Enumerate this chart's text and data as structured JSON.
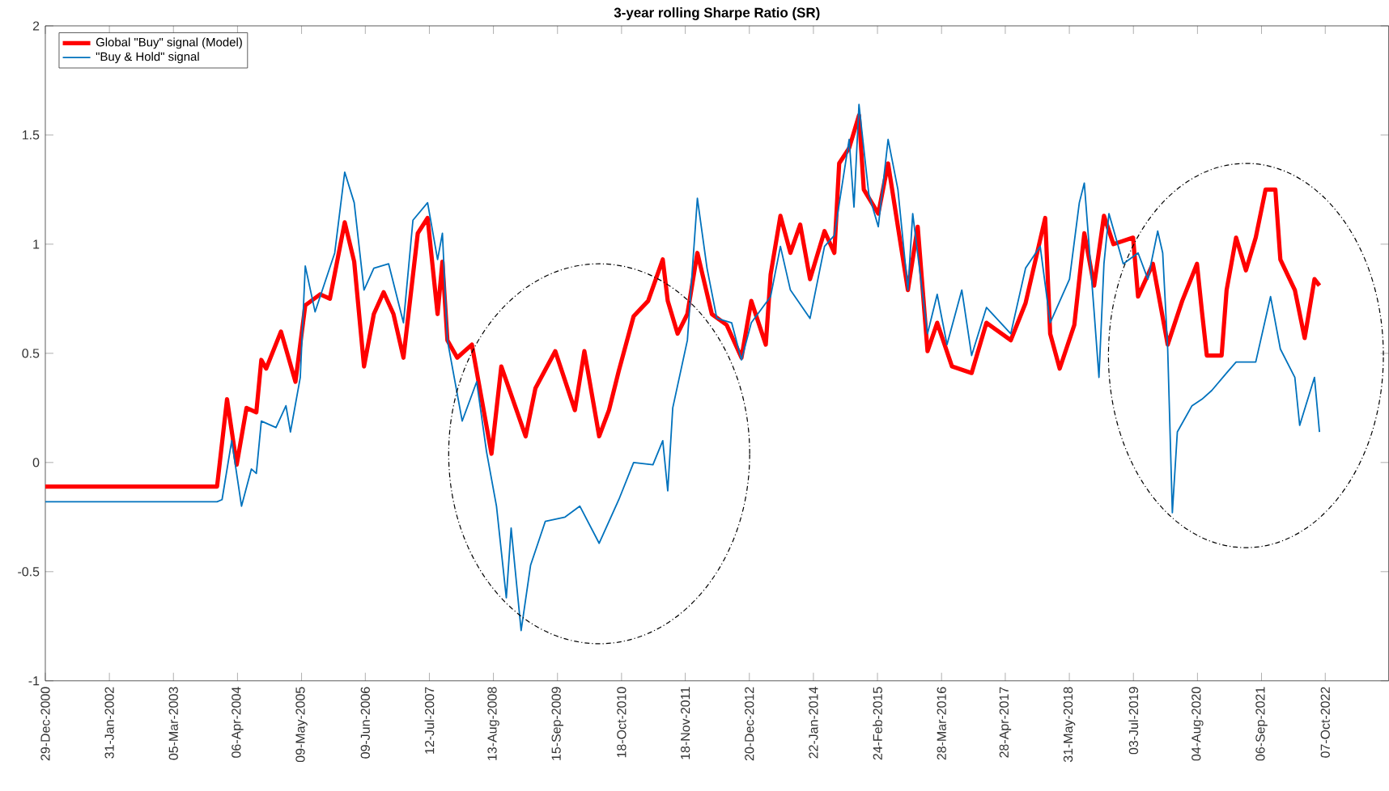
{
  "chart_data": {
    "type": "line",
    "title": "3-year rolling Sharpe Ratio (SR)",
    "xlim": [
      "2000-12-29",
      "2023-11-05"
    ],
    "xticks": [
      {
        "value": "2000-12-29",
        "label": "29-Dec-2000"
      },
      {
        "value": "2002-01-31",
        "label": "31-Jan-2002"
      },
      {
        "value": "2003-03-05",
        "label": "05-Mar-2003"
      },
      {
        "value": "2004-04-06",
        "label": "06-Apr-2004"
      },
      {
        "value": "2005-05-09",
        "label": "09-May-2005"
      },
      {
        "value": "2006-06-09",
        "label": "09-Jun-2006"
      },
      {
        "value": "2007-07-12",
        "label": "12-Jul-2007"
      },
      {
        "value": "2008-08-13",
        "label": "13-Aug-2008"
      },
      {
        "value": "2009-09-15",
        "label": "15-Sep-2009"
      },
      {
        "value": "2010-10-18",
        "label": "18-Oct-2010"
      },
      {
        "value": "2011-11-18",
        "label": "18-Nov-2011"
      },
      {
        "value": "2012-12-20",
        "label": "20-Dec-2012"
      },
      {
        "value": "2014-01-22",
        "label": "22-Jan-2014"
      },
      {
        "value": "2015-02-24",
        "label": "24-Feb-2015"
      },
      {
        "value": "2016-03-28",
        "label": "28-Mar-2016"
      },
      {
        "value": "2017-04-28",
        "label": "28-Apr-2017"
      },
      {
        "value": "2018-05-31",
        "label": "31-May-2018"
      },
      {
        "value": "2019-07-03",
        "label": "03-Jul-2019"
      },
      {
        "value": "2020-08-04",
        "label": "04-Aug-2020"
      },
      {
        "value": "2021-09-06",
        "label": "06-Sep-2021"
      },
      {
        "value": "2022-10-07",
        "label": "07-Oct-2022"
      }
    ],
    "ylim": [
      -1,
      2
    ],
    "yticks": [
      -1,
      -0.5,
      0,
      0.5,
      1,
      1.5,
      2
    ],
    "legend": "top left",
    "series": [
      {
        "name": "Global \"Buy\" signal (Model)",
        "color": "#ff0000",
        "x": [
          "2000-12-29",
          "2003-12",
          "2004-02",
          "2004-04",
          "2004-06",
          "2004-08",
          "2004-09",
          "2004-10",
          "2005-01",
          "2005-04",
          "2005-06",
          "2005-09",
          "2005-11",
          "2006-02",
          "2006-04",
          "2006-06",
          "2006-08",
          "2006-10",
          "2006-12",
          "2007-02",
          "2007-05",
          "2007-07",
          "2007-09",
          "2007-10",
          "2007-11",
          "2008-01",
          "2008-04",
          "2008-08",
          "2008-10",
          "2009-03",
          "2009-05",
          "2009-09",
          "2010-01",
          "2010-03",
          "2010-06",
          "2010-08",
          "2010-10",
          "2011-01",
          "2011-04",
          "2011-07",
          "2011-08",
          "2011-10",
          "2011-12",
          "2012-02",
          "2012-05",
          "2012-08",
          "2012-11",
          "2013-01",
          "2013-04",
          "2013-05",
          "2013-07",
          "2013-09",
          "2013-11",
          "2014-01",
          "2014-04",
          "2014-06",
          "2014-07",
          "2014-09",
          "2014-11",
          "2014-12",
          "2015-03",
          "2015-05",
          "2015-07",
          "2015-09",
          "2015-11",
          "2016-01",
          "2016-03",
          "2016-06",
          "2016-10",
          "2017-01",
          "2017-06",
          "2017-09",
          "2018-01",
          "2018-02",
          "2018-04",
          "2018-07",
          "2018-09",
          "2018-11",
          "2019-01",
          "2019-03",
          "2019-07",
          "2019-08",
          "2019-11",
          "2020-02",
          "2020-05",
          "2020-08",
          "2020-09",
          "2020-10",
          "2021-01",
          "2021-02",
          "2021-04",
          "2021-06",
          "2021-08",
          "2021-10",
          "2021-12",
          "2022-01",
          "2022-04",
          "2022-06",
          "2022-08",
          "2022-09"
        ],
        "values": [
          -0.11,
          -0.11,
          0.29,
          -0.01,
          0.25,
          0.23,
          0.47,
          0.43,
          0.6,
          0.37,
          0.72,
          0.77,
          0.75,
          1.1,
          0.92,
          0.44,
          0.68,
          0.78,
          0.68,
          0.48,
          1.05,
          1.12,
          0.68,
          0.92,
          0.56,
          0.48,
          0.54,
          0.04,
          0.44,
          0.12,
          0.34,
          0.51,
          0.24,
          0.51,
          0.12,
          0.24,
          0.42,
          0.67,
          0.74,
          0.93,
          0.74,
          0.59,
          0.68,
          0.96,
          0.68,
          0.63,
          0.48,
          0.74,
          0.54,
          0.86,
          1.13,
          0.96,
          1.09,
          0.84,
          1.06,
          0.96,
          1.37,
          1.44,
          1.59,
          1.25,
          1.14,
          1.37,
          1.08,
          0.79,
          1.08,
          0.51,
          0.64,
          0.44,
          0.41,
          0.64,
          0.56,
          0.73,
          1.12,
          0.59,
          0.43,
          0.63,
          1.05,
          0.81,
          1.13,
          1.0,
          1.03,
          0.76,
          0.91,
          0.54,
          0.74,
          0.91,
          0.69,
          0.49,
          0.49,
          0.79,
          1.03,
          0.88,
          1.03,
          1.25,
          1.25,
          0.93,
          0.79,
          0.57,
          0.84,
          0.81
        ]
      },
      {
        "name": "\"Buy & Hold\" signal",
        "color": "#0072bd",
        "x": [
          "2000-12-29",
          "2003-12",
          "2004-01",
          "2004-03",
          "2004-05",
          "2004-07",
          "2004-08",
          "2004-09",
          "2004-12",
          "2005-02",
          "2005-03",
          "2005-05",
          "2005-06",
          "2005-08",
          "2005-12",
          "2006-02",
          "2006-04",
          "2006-06",
          "2006-08",
          "2006-11",
          "2007-02",
          "2007-04",
          "2007-07",
          "2007-09",
          "2007-10",
          "2007-11",
          "2008-02",
          "2008-05",
          "2008-07",
          "2008-09",
          "2008-11",
          "2008-12",
          "2009-02",
          "2009-04",
          "2009-07",
          "2009-11",
          "2010-02",
          "2010-06",
          "2010-08",
          "2010-10",
          "2011-01",
          "2011-05",
          "2011-07",
          "2011-08",
          "2011-09",
          "2011-12",
          "2012-02",
          "2012-04",
          "2012-06",
          "2012-09",
          "2012-11",
          "2013-01",
          "2013-05",
          "2013-07",
          "2013-09",
          "2014-01",
          "2014-04",
          "2014-06",
          "2014-09",
          "2014-10",
          "2014-11",
          "2015-01",
          "2015-03",
          "2015-05",
          "2015-07",
          "2015-09",
          "2015-10",
          "2016-01",
          "2016-03",
          "2016-05",
          "2016-08",
          "2016-10",
          "2017-01",
          "2017-06",
          "2017-09",
          "2017-12",
          "2018-02",
          "2018-06",
          "2018-08",
          "2018-09",
          "2018-11",
          "2018-12",
          "2019-01",
          "2019-02",
          "2019-05",
          "2019-08",
          "2019-10",
          "2019-12",
          "2020-01",
          "2020-02",
          "2020-03",
          "2020-04",
          "2020-07",
          "2020-09",
          "2020-11",
          "2021-02",
          "2021-04",
          "2021-08",
          "2021-11",
          "2022-01",
          "2022-04",
          "2022-05",
          "2022-08",
          "2022-09"
        ],
        "values": [
          -0.18,
          -0.18,
          -0.17,
          0.1,
          -0.2,
          -0.03,
          -0.05,
          0.19,
          0.16,
          0.26,
          0.14,
          0.39,
          0.9,
          0.69,
          0.96,
          1.33,
          1.19,
          0.79,
          0.89,
          0.91,
          0.64,
          1.11,
          1.19,
          0.93,
          1.05,
          0.56,
          0.19,
          0.37,
          0.05,
          -0.2,
          -0.62,
          -0.3,
          -0.77,
          -0.47,
          -0.27,
          -0.25,
          -0.2,
          -0.37,
          -0.27,
          -0.17,
          0.0,
          -0.01,
          0.1,
          -0.13,
          0.25,
          0.56,
          1.21,
          0.89,
          0.66,
          0.64,
          0.47,
          0.64,
          0.76,
          0.99,
          0.79,
          0.66,
          0.99,
          1.04,
          1.48,
          1.17,
          1.64,
          1.23,
          1.08,
          1.48,
          1.25,
          0.79,
          1.14,
          0.59,
          0.77,
          0.54,
          0.79,
          0.49,
          0.71,
          0.59,
          0.89,
          0.99,
          0.64,
          0.84,
          1.19,
          1.28,
          0.69,
          0.39,
          0.91,
          1.14,
          0.91,
          0.96,
          0.84,
          1.06,
          0.96,
          0.52,
          -0.23,
          0.14,
          0.26,
          0.29,
          0.33,
          0.41,
          0.46,
          0.46,
          0.76,
          0.52,
          0.39,
          0.17,
          0.39,
          0.14
        ]
      }
    ]
  }
}
